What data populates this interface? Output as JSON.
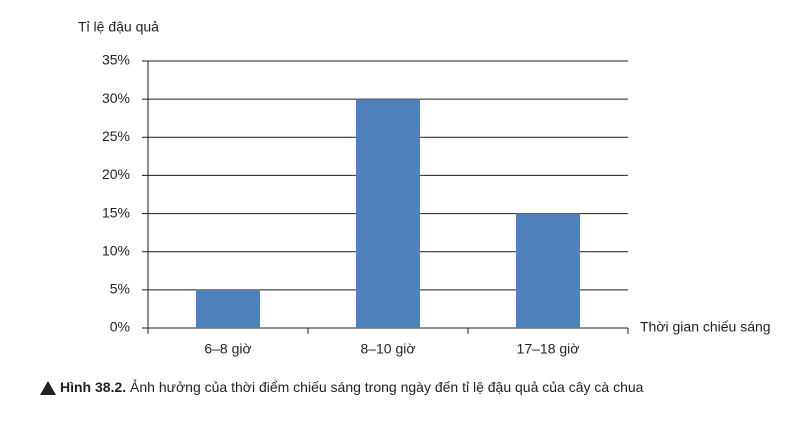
{
  "chart_data": {
    "type": "bar",
    "y_axis_label": "Tỉ lệ đậu quả",
    "x_axis_label": "Thời gian chiếu sáng",
    "categories": [
      "6–8 giờ",
      "8–10 giờ",
      "17–18 giờ"
    ],
    "values": [
      5,
      30,
      15
    ],
    "color": "#4f81bd",
    "ylim": [
      0,
      35
    ],
    "yticks": [
      {
        "value": 0,
        "label": "0%"
      },
      {
        "value": 5,
        "label": "5%"
      },
      {
        "value": 10,
        "label": "10%"
      },
      {
        "value": 15,
        "label": "15%"
      },
      {
        "value": 20,
        "label": "20%"
      },
      {
        "value": 25,
        "label": "25%"
      },
      {
        "value": 30,
        "label": "30%"
      },
      {
        "value": 35,
        "label": "35%"
      }
    ],
    "grid": true,
    "caption_label": "Hình 38.2.",
    "caption": "Ảnh hưởng của thời điểm chiếu sáng trong ngày đến tỉ lệ đậu quả của cây cà chua"
  }
}
